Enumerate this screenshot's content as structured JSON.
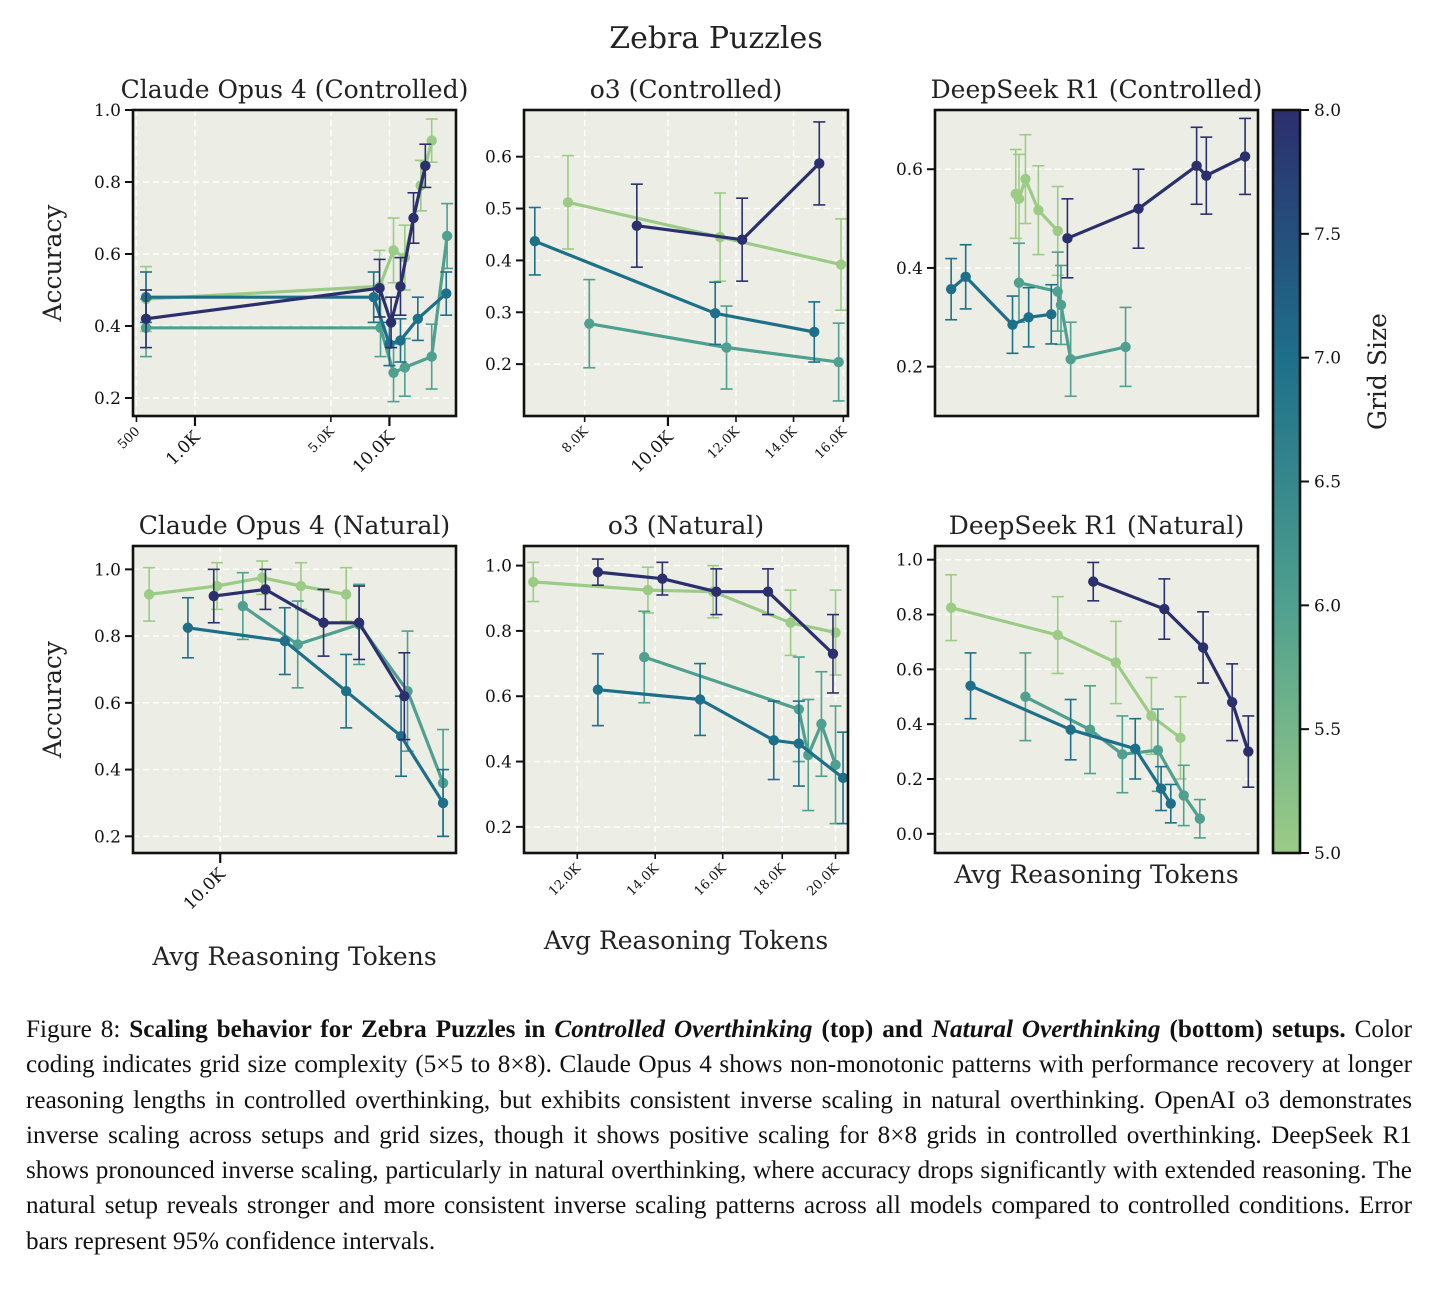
{
  "figure_title": "Zebra Puzzles",
  "colorbar": {
    "label": "Grid Size",
    "min": 5.0,
    "max": 8.0,
    "ticks": [
      "5.0",
      "5.5",
      "6.0",
      "6.5",
      "7.0",
      "7.5",
      "8.0"
    ],
    "colors": [
      "#9ccb86",
      "#4fa08e",
      "#1e6f8a",
      "#2c2f6e"
    ]
  },
  "caption": {
    "prefix": "Figure 8: ",
    "bold_1": "Scaling behavior for Zebra Puzzles in ",
    "bold_italic_1": "Controlled Overthinking",
    "bold_2": " (top) and ",
    "bold_italic_2": "Natural Overthinking",
    "bold_3": " (bottom) setups.",
    "body": " Color coding indicates grid size complexity (5×5 to 8×8). Claude Opus 4 shows non-monotonic patterns with performance recovery at longer reasoning lengths in controlled overthinking, but exhibits consistent inverse scaling in natural overthinking. OpenAI o3 demonstrates inverse scaling across setups and grid sizes, though it shows positive scaling for 8×8 grids in controlled overthinking. DeepSeek R1 shows pronounced inverse scaling, particularly in natural overthinking, where accuracy drops significantly with extended reasoning. The natural setup reveals stronger and more consistent inverse scaling patterns across all models compared to controlled conditions. Error bars represent 95% confidence intervals."
  },
  "chart_data": [
    {
      "type": "line",
      "title": "Claude Opus 4 (Controlled)",
      "xlabel": "",
      "ylabel": "Accuracy",
      "xscale": "log",
      "xlim": [
        480,
        22000
      ],
      "ylim": [
        0.15,
        1.0
      ],
      "yticks": [
        0.2,
        0.4,
        0.6,
        0.8,
        1.0
      ],
      "ytick_labels": [
        "0.2",
        "0.4",
        "0.6",
        "0.8",
        "1.0"
      ],
      "xticks_major": [
        1000,
        10000
      ],
      "xticks_major_labels": [
        "1.0K",
        "10.0K"
      ],
      "xticks_minor": [
        500,
        5000
      ],
      "xticks_minor_labels": [
        "500",
        "5.0K"
      ],
      "grid": true,
      "series": [
        {
          "grid_size": 5,
          "x": [
            560,
            8900,
            10500,
            12000,
            14500
          ],
          "y": [
            0.475,
            0.51,
            0.61,
            0.59,
            0.79
          ],
          "err": [
            0.09,
            0.1,
            0.09,
            0.09,
            0.07
          ]
        },
        {
          "grid_size": 5,
          "x": [
            14500,
            16500
          ],
          "y": [
            0.79,
            0.915
          ],
          "err": [
            0.07,
            0.06
          ]
        },
        {
          "grid_size": 6,
          "x": [
            560,
            9000,
            10500,
            12000,
            16500,
            19800
          ],
          "y": [
            0.395,
            0.395,
            0.27,
            0.285,
            0.315,
            0.65
          ],
          "err": [
            0.08,
            0.08,
            0.08,
            0.08,
            0.09,
            0.09
          ]
        },
        {
          "grid_size": 7,
          "x": [
            560,
            8300,
            10000,
            11400,
            14000,
            19600
          ],
          "y": [
            0.48,
            0.48,
            0.35,
            0.36,
            0.42,
            0.49
          ],
          "err": [
            0.07,
            0.07,
            0.06,
            0.06,
            0.06,
            0.06
          ]
        },
        {
          "grid_size": 8,
          "x": [
            560,
            8900,
            10200,
            11400,
            13300,
            15300
          ],
          "y": [
            0.42,
            0.505,
            0.41,
            0.51,
            0.7,
            0.845
          ],
          "err": [
            0.08,
            0.08,
            0.07,
            0.08,
            0.07,
            0.06
          ]
        }
      ]
    },
    {
      "type": "line",
      "title": "o3 (Controlled)",
      "xlabel": "",
      "ylabel": "",
      "xscale": "log",
      "xlim": [
        6800,
        16200
      ],
      "ylim": [
        0.1,
        0.69
      ],
      "yticks": [
        0.2,
        0.3,
        0.4,
        0.5,
        0.6
      ],
      "ytick_labels": [
        "0.2",
        "0.3",
        "0.4",
        "0.5",
        "0.6"
      ],
      "xticks_major": [
        10000
      ],
      "xticks_major_labels": [
        "10.0K"
      ],
      "xticks_minor": [
        8000,
        12000,
        14000,
        16000
      ],
      "xticks_minor_labels": [
        "8.0K",
        "12.0K",
        "14.0K",
        "16.0K"
      ],
      "grid": true,
      "series": [
        {
          "grid_size": 5,
          "x": [
            7650,
            11500,
            15900
          ],
          "y": [
            0.512,
            0.445,
            0.392
          ],
          "err": [
            0.09,
            0.085,
            0.088
          ]
        },
        {
          "grid_size": 6,
          "x": [
            8100,
            11700,
            15800
          ],
          "y": [
            0.278,
            0.232,
            0.204
          ],
          "err": [
            0.085,
            0.08,
            0.075
          ]
        },
        {
          "grid_size": 7,
          "x": [
            7000,
            11350,
            14800
          ],
          "y": [
            0.437,
            0.298,
            0.262
          ],
          "err": [
            0.065,
            0.06,
            0.058
          ]
        },
        {
          "grid_size": 8,
          "x": [
            9200,
            12200,
            15000
          ],
          "y": [
            0.467,
            0.44,
            0.587
          ],
          "err": [
            0.08,
            0.08,
            0.08
          ]
        }
      ]
    },
    {
      "type": "line",
      "title": "DeepSeek R1 (Controlled)",
      "xlabel": "",
      "ylabel": "",
      "xlim": [
        0,
        100
      ],
      "ylim": [
        0.1,
        0.72
      ],
      "yticks": [
        0.2,
        0.4,
        0.6
      ],
      "ytick_labels": [
        "0.2",
        "0.4",
        "0.6"
      ],
      "grid": true,
      "series": [
        {
          "grid_size": 5,
          "x": [
            25,
            26,
            28,
            32,
            38
          ],
          "y": [
            0.55,
            0.54,
            0.58,
            0.517,
            0.475
          ],
          "err": [
            0.09,
            0.09,
            0.09,
            0.09,
            0.09
          ]
        },
        {
          "grid_size": 6,
          "x": [
            26,
            38,
            39,
            42,
            59
          ],
          "y": [
            0.37,
            0.352,
            0.325,
            0.215,
            0.24
          ],
          "err": [
            0.08,
            0.08,
            0.08,
            0.075,
            0.08
          ]
        },
        {
          "grid_size": 7,
          "x": [
            5,
            9.5,
            24,
            29,
            36
          ],
          "y": [
            0.357,
            0.382,
            0.285,
            0.3,
            0.306
          ],
          "err": [
            0.062,
            0.065,
            0.058,
            0.06,
            0.06
          ]
        },
        {
          "grid_size": 8,
          "x": [
            41,
            63,
            81,
            84,
            96
          ],
          "y": [
            0.46,
            0.52,
            0.607,
            0.587,
            0.626
          ],
          "err": [
            0.08,
            0.08,
            0.078,
            0.078,
            0.077
          ]
        }
      ]
    },
    {
      "type": "line",
      "title": "Claude Opus 4 (Natural)",
      "xlabel": "Avg Reasoning Tokens",
      "ylabel": "Accuracy",
      "xlim": [
        0,
        100
      ],
      "ylim": [
        0.15,
        1.07
      ],
      "yticks": [
        0.2,
        0.4,
        0.6,
        0.8,
        1.0
      ],
      "ytick_labels": [
        "0.2",
        "0.4",
        "0.6",
        "0.8",
        "1.0"
      ],
      "xticks_major": [
        27
      ],
      "xticks_major_labels": [
        "10.0K"
      ],
      "grid": true,
      "series": [
        {
          "grid_size": 5,
          "x": [
            5,
            26,
            40,
            52,
            66
          ],
          "y": [
            0.925,
            0.95,
            0.975,
            0.95,
            0.925
          ],
          "err": [
            0.08,
            0.07,
            0.05,
            0.07,
            0.08
          ]
        },
        {
          "grid_size": 6,
          "x": [
            34,
            51,
            70,
            85,
            96
          ],
          "y": [
            0.89,
            0.775,
            0.835,
            0.635,
            0.36
          ],
          "err": [
            0.1,
            0.13,
            0.12,
            0.18,
            0.16
          ]
        },
        {
          "grid_size": 7,
          "x": [
            17,
            47,
            66,
            83,
            96
          ],
          "y": [
            0.825,
            0.785,
            0.635,
            0.5,
            0.3
          ],
          "err": [
            0.09,
            0.1,
            0.11,
            0.12,
            0.1
          ]
        },
        {
          "grid_size": 8,
          "x": [
            25,
            41,
            59,
            70,
            84
          ],
          "y": [
            0.92,
            0.94,
            0.84,
            0.84,
            0.62
          ],
          "err": [
            0.08,
            0.06,
            0.1,
            0.11,
            0.13
          ]
        }
      ]
    },
    {
      "type": "line",
      "title": "o3 (Natural)",
      "xlabel": "Avg Reasoning Tokens",
      "ylabel": "",
      "xscale": "log",
      "xlim": [
        10800,
        20500
      ],
      "ylim": [
        0.12,
        1.06
      ],
      "yticks": [
        0.2,
        0.4,
        0.6,
        0.8,
        1.0
      ],
      "ytick_labels": [
        "0.2",
        "0.4",
        "0.6",
        "0.8",
        "1.0"
      ],
      "xticks_minor": [
        12000,
        14000,
        16000,
        18000,
        20000
      ],
      "xticks_minor_labels": [
        "12.0K",
        "14.0K",
        "16.0K",
        "18.0K",
        "20.0K"
      ],
      "grid": true,
      "series": [
        {
          "grid_size": 5,
          "x": [
            11000,
            13800,
            15700,
            18300,
            20000
          ],
          "y": [
            0.95,
            0.925,
            0.92,
            0.825,
            0.795
          ],
          "err": [
            0.06,
            0.07,
            0.08,
            0.1,
            0.13
          ]
        },
        {
          "grid_size": 6,
          "x": [
            13700,
            18600,
            18950,
            19450,
            20000
          ],
          "y": [
            0.72,
            0.56,
            0.42,
            0.515,
            0.39
          ],
          "err": [
            0.14,
            0.16,
            0.17,
            0.16,
            0.18
          ]
        },
        {
          "grid_size": 7,
          "x": [
            12500,
            15300,
            17700,
            18600,
            20300
          ],
          "y": [
            0.62,
            0.59,
            0.465,
            0.455,
            0.35
          ],
          "err": [
            0.11,
            0.11,
            0.12,
            0.13,
            0.14
          ]
        },
        {
          "grid_size": 8,
          "x": [
            12500,
            14200,
            15800,
            17500,
            19900
          ],
          "y": [
            0.98,
            0.96,
            0.92,
            0.92,
            0.73
          ],
          "err": [
            0.04,
            0.05,
            0.07,
            0.07,
            0.12
          ]
        }
      ]
    },
    {
      "type": "line",
      "title": "DeepSeek R1 (Natural)",
      "xlabel": "Avg Reasoning Tokens",
      "ylabel": "",
      "xlim": [
        0,
        100
      ],
      "ylim": [
        -0.07,
        1.05
      ],
      "yticks": [
        0.0,
        0.2,
        0.4,
        0.6,
        0.8,
        1.0
      ],
      "ytick_labels": [
        "0.0",
        "0.2",
        "0.4",
        "0.6",
        "0.8",
        "1.0"
      ],
      "grid": true,
      "series": [
        {
          "grid_size": 5,
          "x": [
            5,
            38,
            56,
            67,
            76
          ],
          "y": [
            0.825,
            0.725,
            0.625,
            0.43,
            0.35
          ],
          "err": [
            0.12,
            0.14,
            0.15,
            0.14,
            0.15
          ]
        },
        {
          "grid_size": 6,
          "x": [
            28,
            48,
            58,
            69,
            77,
            82
          ],
          "y": [
            0.5,
            0.38,
            0.29,
            0.305,
            0.14,
            0.055
          ],
          "err": [
            0.16,
            0.16,
            0.14,
            0.15,
            0.11,
            0.07
          ]
        },
        {
          "grid_size": 7,
          "x": [
            11,
            42,
            62,
            70,
            73
          ],
          "y": [
            0.54,
            0.38,
            0.31,
            0.165,
            0.11
          ],
          "err": [
            0.12,
            0.11,
            0.11,
            0.08,
            0.07
          ]
        },
        {
          "grid_size": 8,
          "x": [
            49,
            71,
            83,
            92,
            97
          ],
          "y": [
            0.92,
            0.82,
            0.68,
            0.48,
            0.3
          ],
          "err": [
            0.07,
            0.11,
            0.13,
            0.14,
            0.13
          ]
        }
      ]
    }
  ]
}
